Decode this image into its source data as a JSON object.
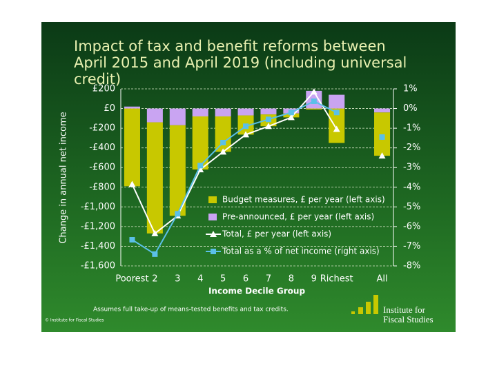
{
  "chart_data": {
    "type": "bar",
    "title": "Impact of tax and benefit reforms between April 2015 and April 2019 (including universal credit)",
    "y_axis_label": "Change in annual net income",
    "x_axis_label": "Income Decile Group",
    "categories": [
      "Poorest",
      "2",
      "3",
      "4",
      "5",
      "6",
      "7",
      "8",
      "9",
      "Richest",
      null,
      "All"
    ],
    "series": [
      {
        "name": "Budget measures, £ per year (left axis)",
        "type": "bar",
        "color": "#c8c800",
        "values": [
          -790,
          -1130,
          -920,
          -540,
          -360,
          -195,
          -120,
          -40,
          -10,
          -350,
          null,
          -440
        ]
      },
      {
        "name": "Pre-announced, £ per year (left axis)",
        "type": "bar",
        "color": "#c9a4f2",
        "values": [
          20,
          -140,
          -170,
          -80,
          -80,
          -70,
          -60,
          -50,
          180,
          140,
          null,
          -40
        ]
      },
      {
        "name": "Total, £ per year (left axis)",
        "type": "line",
        "marker": "triangle",
        "color": "#ffffff",
        "values": [
          -770,
          -1270,
          -1090,
          -620,
          -440,
          -265,
          -180,
          -90,
          170,
          -210,
          null,
          -480
        ]
      },
      {
        "name": "Total as a % of net income (right axis)",
        "type": "line",
        "marker": "square",
        "axis": "y2",
        "color": "#5bc0e8",
        "values": [
          -6.67,
          -7.4,
          -5.35,
          -2.9,
          -1.73,
          -0.9,
          -0.55,
          -0.2,
          0.37,
          -0.2,
          null,
          -1.45
        ]
      }
    ],
    "ylim": [
      -1600,
      200
    ],
    "yticks": [
      {
        "value": 200,
        "label": "£200"
      },
      {
        "value": 0,
        "label": "£0"
      },
      {
        "value": -200,
        "label": "-£200"
      },
      {
        "value": -400,
        "label": "-£400"
      },
      {
        "value": -600,
        "label": "-£600"
      },
      {
        "value": -800,
        "label": "-£800"
      },
      {
        "value": -1000,
        "label": "-£1,000"
      },
      {
        "value": -1200,
        "label": "-£1,200"
      },
      {
        "value": -1400,
        "label": "-£1,400"
      },
      {
        "value": -1600,
        "label": "-£1,600"
      }
    ],
    "y2lim": [
      -8,
      1
    ],
    "y2ticks": [
      {
        "value": 1,
        "label": "1%"
      },
      {
        "value": 0,
        "label": "0%"
      },
      {
        "value": -1,
        "label": "-1%"
      },
      {
        "value": -2,
        "label": "-2%"
      },
      {
        "value": -3,
        "label": "-3%"
      },
      {
        "value": -4,
        "label": "-4%"
      },
      {
        "value": -5,
        "label": "-5%"
      },
      {
        "value": -6,
        "label": "-6%"
      },
      {
        "value": -7,
        "label": "-7%"
      },
      {
        "value": -8,
        "label": "-8%"
      }
    ],
    "grid": true,
    "legend": "lower right",
    "footnote": "Assumes full take-up of means-tested benefits and tax credits.",
    "copyright": "© Institute for Fiscal Studies",
    "logo": [
      "Institute for",
      "Fiscal Studies"
    ]
  }
}
